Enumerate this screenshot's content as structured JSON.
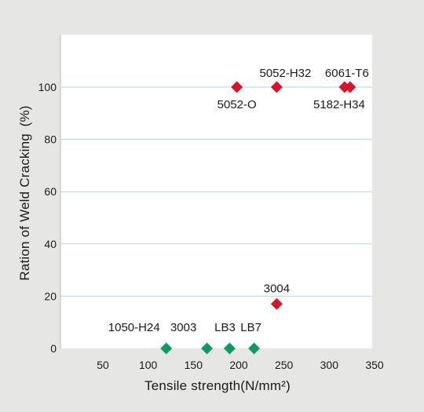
{
  "chart_data": {
    "type": "scatter",
    "title": "",
    "xlabel": "Tensile strength(N/mm²)",
    "ylabel": "Ration of Weld Cracking (%)",
    "xlim": [
      0,
      350
    ],
    "ylim": [
      0,
      115
    ],
    "x_ticks": [
      "50",
      "100",
      "150",
      "200",
      "250",
      "300",
      "350"
    ],
    "y_ticks": [
      "0",
      "20",
      "40",
      "60",
      "80",
      "100"
    ],
    "grid": "horizontal",
    "colors": {
      "plot_background": "#ffffff",
      "page_background": "#e6e6e4",
      "gridline": "#a9d9e4",
      "cracking": "#d7142c",
      "no_cracking": "#129963"
    },
    "series": [
      {
        "color_key": "cracking",
        "points": [
          {
            "label": "5052-O",
            "x": 198,
            "y": 100
          },
          {
            "label": "5052-H32",
            "x": 242,
            "y": 100
          },
          {
            "label": "5182-H34",
            "x": 317,
            "y": 100
          },
          {
            "label": "6061-T6",
            "x": 323,
            "y": 100
          },
          {
            "label": "3004",
            "x": 242,
            "y": 17
          }
        ]
      },
      {
        "color_key": "no_cracking",
        "points": [
          {
            "label": "1050-H24",
            "x": 120,
            "y": 0
          },
          {
            "label": "3003",
            "x": 165,
            "y": 0
          },
          {
            "label": "LB3",
            "x": 190,
            "y": 0
          },
          {
            "label": "LB7",
            "x": 217,
            "y": 0
          }
        ]
      }
    ]
  }
}
